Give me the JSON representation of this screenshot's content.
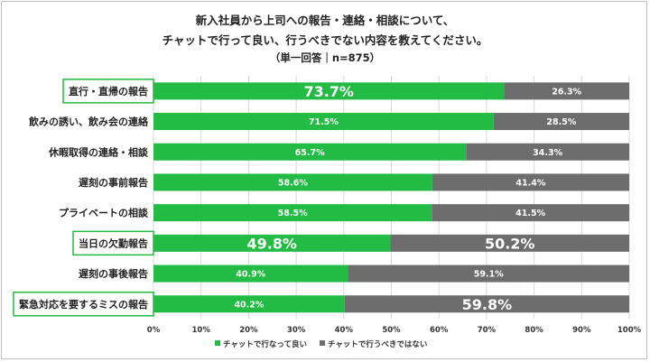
{
  "title_lines": [
    "新入社員から上司への報告・連絡・相談について、",
    "チャットで行って良い、行うべきでない内容を教えてください。",
    "（単一回答｜n=875）"
  ],
  "colors": {
    "green": "#22bb44",
    "gray": "#6d6d6d",
    "highlight_border": "#22bb44"
  },
  "chart_data": {
    "type": "bar",
    "orientation": "horizontal",
    "stacked": "100%",
    "title": "新入社員から上司への報告・連絡・相談について、チャットで行って良い、行うべきでない内容を教えてください。（単一回答｜n=875）",
    "categories": [
      "直行・直帰の報告",
      "飲みの誘い、飲み会の連絡",
      "休暇取得の連絡・相談",
      "遅刻の事前報告",
      "プライベートの相談",
      "当日の欠勤報告",
      "遅刻の事後報告",
      "緊急対応を要するミスの報告"
    ],
    "highlighted": [
      true,
      false,
      false,
      false,
      false,
      true,
      false,
      true
    ],
    "series": [
      {
        "name": "チャットで行なって良い",
        "color": "#22bb44",
        "values": [
          73.7,
          71.5,
          65.7,
          58.6,
          58.5,
          49.8,
          40.9,
          40.2
        ],
        "labels": [
          "73.7%",
          "71.5%",
          "65.7%",
          "58.6%",
          "58.5%",
          "49.8%",
          "40.9%",
          "40.2%"
        ],
        "emphasized": [
          true,
          false,
          false,
          false,
          false,
          true,
          false,
          false
        ]
      },
      {
        "name": "チャットで行うべきではない",
        "color": "#6d6d6d",
        "values": [
          26.3,
          28.5,
          34.3,
          41.4,
          41.5,
          50.2,
          59.1,
          59.8
        ],
        "labels": [
          "26.3%",
          "28.5%",
          "34.3%",
          "41.4%",
          "41.5%",
          "50.2%",
          "59.1%",
          "59.8%"
        ],
        "emphasized": [
          false,
          false,
          false,
          false,
          false,
          true,
          false,
          true
        ]
      }
    ],
    "x_ticks": [
      "0%",
      "10%",
      "20%",
      "30%",
      "40%",
      "50%",
      "60%",
      "70%",
      "80%",
      "90%",
      "100%"
    ],
    "xlim": [
      0,
      100
    ],
    "grid": true,
    "legend_position": "bottom"
  }
}
